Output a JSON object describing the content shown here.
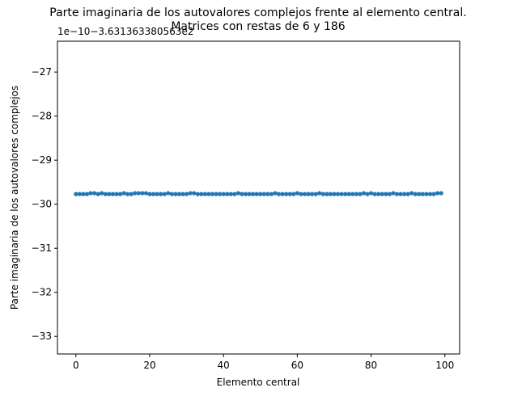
{
  "chart_data": {
    "type": "line",
    "title_line1": "Parte imaginaria de los autovalores complejos frente al elemento central.",
    "title_line2": "Matrices con restas de 6 y 186",
    "xlabel": "Elemento central",
    "ylabel": "Parte imaginaria de los autovalores complejos",
    "offset_text": "1e−10−3.631363380563e2",
    "xlim": [
      -5,
      104
    ],
    "ylim": [
      -33.4,
      -26.3
    ],
    "xticks": [
      0,
      20,
      40,
      60,
      80,
      100
    ],
    "xtick_labels": [
      "0",
      "20",
      "40",
      "60",
      "80",
      "100"
    ],
    "yticks": [
      -33,
      -32,
      -31,
      -30,
      -29,
      -28,
      -27
    ],
    "ytick_labels": [
      "−33",
      "−32",
      "−31",
      "−30",
      "−29",
      "−28",
      "−27"
    ],
    "grid": false,
    "marker": "circle",
    "color": "#1f77b4",
    "series": [
      {
        "x": [
          0,
          1,
          2,
          3,
          4,
          5,
          6,
          7,
          8,
          9,
          10,
          11,
          12,
          13,
          14,
          15,
          16,
          17,
          18,
          19,
          20,
          21,
          22,
          23,
          24,
          25,
          26,
          27,
          28,
          29,
          30,
          31,
          32,
          33,
          34,
          35,
          36,
          37,
          38,
          39,
          40,
          41,
          42,
          43,
          44,
          45,
          46,
          47,
          48,
          49,
          50,
          51,
          52,
          53,
          54,
          55,
          56,
          57,
          58,
          59,
          60,
          61,
          62,
          63,
          64,
          65,
          66,
          67,
          68,
          69,
          70,
          71,
          72,
          73,
          74,
          75,
          76,
          77,
          78,
          79,
          80,
          81,
          82,
          83,
          84,
          85,
          86,
          87,
          88,
          89,
          90,
          91,
          92,
          93,
          94,
          95,
          96,
          97,
          98,
          99
        ],
        "y": [
          -29.77,
          -29.77,
          -29.77,
          -29.77,
          -29.75,
          -29.75,
          -29.77,
          -29.75,
          -29.77,
          -29.77,
          -29.77,
          -29.77,
          -29.77,
          -29.75,
          -29.77,
          -29.77,
          -29.75,
          -29.75,
          -29.75,
          -29.75,
          -29.77,
          -29.77,
          -29.77,
          -29.77,
          -29.77,
          -29.75,
          -29.77,
          -29.77,
          -29.77,
          -29.77,
          -29.77,
          -29.75,
          -29.75,
          -29.77,
          -29.77,
          -29.77,
          -29.77,
          -29.77,
          -29.77,
          -29.77,
          -29.77,
          -29.77,
          -29.77,
          -29.77,
          -29.75,
          -29.77,
          -29.77,
          -29.77,
          -29.77,
          -29.77,
          -29.77,
          -29.77,
          -29.77,
          -29.77,
          -29.75,
          -29.77,
          -29.77,
          -29.77,
          -29.77,
          -29.77,
          -29.75,
          -29.77,
          -29.77,
          -29.77,
          -29.77,
          -29.77,
          -29.75,
          -29.77,
          -29.77,
          -29.77,
          -29.77,
          -29.77,
          -29.77,
          -29.77,
          -29.77,
          -29.77,
          -29.77,
          -29.77,
          -29.75,
          -29.77,
          -29.75,
          -29.77,
          -29.77,
          -29.77,
          -29.77,
          -29.77,
          -29.75,
          -29.77,
          -29.77,
          -29.77,
          -29.77,
          -29.75,
          -29.77,
          -29.77,
          -29.77,
          -29.77,
          -29.77,
          -29.77,
          -29.75,
          -29.75
        ]
      }
    ]
  }
}
